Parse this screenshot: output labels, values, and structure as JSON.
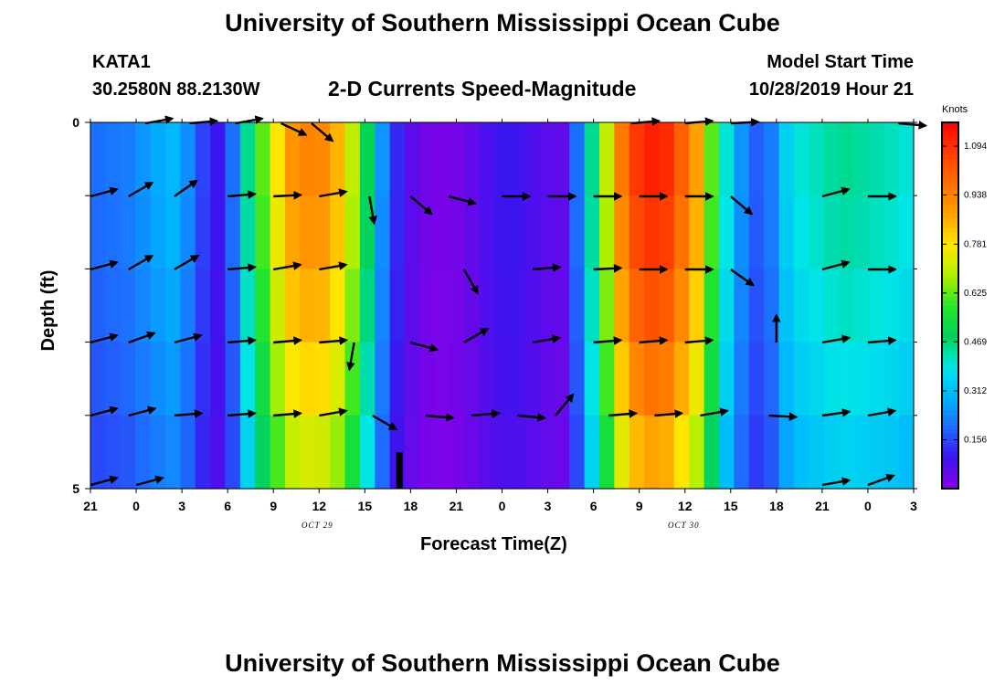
{
  "titles": {
    "top": "University of Southern Mississippi Ocean Cube",
    "bottom": "University of Southern Mississippi Ocean Cube"
  },
  "station": {
    "id": "KATA1",
    "coords": "30.2580N 88.2130W"
  },
  "model": {
    "label": "Model Start Time",
    "start": "10/28/2019 Hour 21"
  },
  "colorbar_unit": "Knots",
  "colors": {
    "ramp": [
      "#8a00e6",
      "#3c14f0",
      "#1e6cff",
      "#00b4ff",
      "#00e6e6",
      "#00d25a",
      "#28e628",
      "#b4f000",
      "#ffe600",
      "#ffa000",
      "#ff6e00",
      "#ff3c00",
      "#ff0000"
    ]
  },
  "chart_data": {
    "type": "heatmap",
    "title": "2-D Currents Speed-Magnitude",
    "xlabel": "Forecast Time(Z)",
    "ylabel": "Depth (ft)",
    "x_ticks": [
      "21",
      "0",
      "3",
      "6",
      "9",
      "12",
      "15",
      "18",
      "21",
      "0",
      "3",
      "6",
      "9",
      "12",
      "15",
      "18",
      "21",
      "0",
      "3"
    ],
    "x_date_labels": [
      {
        "tick_index": 5,
        "text": "OCT 29"
      },
      {
        "tick_index": 13,
        "text": "OCT 30"
      }
    ],
    "y_ticks": [
      "0",
      "",
      "",
      "",
      "",
      "5"
    ],
    "ylim": [
      0,
      5
    ],
    "x_hours": [
      0,
      1,
      2,
      3,
      4,
      5,
      6,
      7,
      8,
      9,
      10,
      11,
      12,
      13,
      14,
      15,
      16,
      17,
      18,
      19,
      20,
      21,
      22,
      23,
      24,
      25,
      26,
      27,
      28,
      29,
      30,
      31,
      32,
      33,
      34,
      35,
      36,
      37,
      38,
      39,
      40,
      41,
      42,
      43,
      44,
      45,
      46,
      47,
      48,
      49,
      50,
      51,
      52,
      53,
      54
    ],
    "depth_layers_ft": [
      0,
      1,
      2,
      3,
      4,
      5
    ],
    "colorbar": {
      "min": 0.0,
      "max": 1.17,
      "tick_labels": [
        "1.094",
        "0.938",
        "0.781",
        "0.625",
        "0.469",
        "0.312",
        "0.156"
      ],
      "tick_values": [
        1.094,
        0.938,
        0.781,
        0.625,
        0.469,
        0.312,
        0.156
      ]
    },
    "surface_speed_knots": [
      0.2,
      0.21,
      0.22,
      0.25,
      0.28,
      0.3,
      0.24,
      0.15,
      0.1,
      0.2,
      0.45,
      0.62,
      0.78,
      0.9,
      0.93,
      0.92,
      0.85,
      0.7,
      0.5,
      0.25,
      0.12,
      0.06,
      0.03,
      0.02,
      0.03,
      0.05,
      0.08,
      0.1,
      0.1,
      0.08,
      0.06,
      0.05,
      0.2,
      0.45,
      0.7,
      0.95,
      1.08,
      1.12,
      1.1,
      1.0,
      0.88,
      0.62,
      0.4,
      0.25,
      0.18,
      0.22,
      0.35,
      0.4,
      0.42,
      0.44,
      0.45,
      0.44,
      0.43,
      0.42,
      0.4
    ],
    "depth_factor": [
      1.0,
      0.97,
      0.92,
      0.86,
      0.78,
      0.68
    ],
    "vectors": [
      {
        "row": 0,
        "cols": [
          {
            "t": 3.6,
            "ang": 10
          },
          {
            "t": 6.5,
            "ang": 5
          },
          {
            "t": 9.5,
            "ang": 10
          },
          {
            "t": 12.5,
            "ang": -25
          },
          {
            "t": 14.5,
            "ang": -40
          },
          {
            "t": 35.5,
            "ang": 5
          },
          {
            "t": 39,
            "ang": 5
          },
          {
            "t": 42,
            "ang": 3
          },
          {
            "t": 53,
            "ang": -5
          }
        ]
      },
      {
        "row": 1,
        "cols": [
          {
            "t": 0,
            "ang": 15
          },
          {
            "t": 2.5,
            "ang": 30
          },
          {
            "t": 5.5,
            "ang": 35
          },
          {
            "t": 9,
            "ang": 5
          },
          {
            "t": 12,
            "ang": 3
          },
          {
            "t": 15,
            "ang": 10
          },
          {
            "t": 18.3,
            "ang": -80
          },
          {
            "t": 21,
            "ang": -40
          },
          {
            "t": 23.5,
            "ang": -15
          },
          {
            "t": 27,
            "ang": 0
          },
          {
            "t": 30,
            "ang": 0
          },
          {
            "t": 33,
            "ang": 0
          },
          {
            "t": 36,
            "ang": 0
          },
          {
            "t": 39,
            "ang": 0
          },
          {
            "t": 42,
            "ang": -40
          },
          {
            "t": 48,
            "ang": 15
          },
          {
            "t": 51,
            "ang": 0
          }
        ]
      },
      {
        "row": 2,
        "cols": [
          {
            "t": 0,
            "ang": 15
          },
          {
            "t": 2.5,
            "ang": 30
          },
          {
            "t": 5.5,
            "ang": 30
          },
          {
            "t": 9,
            "ang": 5
          },
          {
            "t": 12,
            "ang": 10
          },
          {
            "t": 15,
            "ang": 10
          },
          {
            "t": 24.5,
            "ang": -60
          },
          {
            "t": 29,
            "ang": 5
          },
          {
            "t": 33,
            "ang": 3
          },
          {
            "t": 36,
            "ang": 0
          },
          {
            "t": 39,
            "ang": 0
          },
          {
            "t": 42,
            "ang": -35
          },
          {
            "t": 48,
            "ang": 15
          },
          {
            "t": 51,
            "ang": 0
          }
        ]
      },
      {
        "row": 3,
        "cols": [
          {
            "t": 0,
            "ang": 15
          },
          {
            "t": 2.5,
            "ang": 20
          },
          {
            "t": 5.5,
            "ang": 15
          },
          {
            "t": 9,
            "ang": 5
          },
          {
            "t": 12,
            "ang": 5
          },
          {
            "t": 15,
            "ang": 5
          },
          {
            "t": 17.3,
            "ang": -100
          },
          {
            "t": 21,
            "ang": -15
          },
          {
            "t": 24.5,
            "ang": 30
          },
          {
            "t": 29,
            "ang": 10
          },
          {
            "t": 33,
            "ang": 5
          },
          {
            "t": 36,
            "ang": 5
          },
          {
            "t": 39,
            "ang": 5
          },
          {
            "t": 45,
            "ang": 90
          },
          {
            "t": 48,
            "ang": 10
          },
          {
            "t": 51,
            "ang": 5
          }
        ]
      },
      {
        "row": 4,
        "cols": [
          {
            "t": 0,
            "ang": 15
          },
          {
            "t": 2.5,
            "ang": 15
          },
          {
            "t": 5.5,
            "ang": 5
          },
          {
            "t": 9,
            "ang": 5
          },
          {
            "t": 12,
            "ang": 5
          },
          {
            "t": 15,
            "ang": 10
          },
          {
            "t": 18.5,
            "ang": -30
          },
          {
            "t": 22,
            "ang": -5
          },
          {
            "t": 25,
            "ang": 5
          },
          {
            "t": 28,
            "ang": -5
          },
          {
            "t": 30.5,
            "ang": 50
          },
          {
            "t": 34,
            "ang": 5
          },
          {
            "t": 37,
            "ang": 5
          },
          {
            "t": 40,
            "ang": 10
          },
          {
            "t": 44.5,
            "ang": -3
          },
          {
            "t": 48,
            "ang": 8
          },
          {
            "t": 51,
            "ang": 10
          }
        ]
      },
      {
        "row": 5,
        "cols": [
          {
            "t": 0,
            "ang": 15
          },
          {
            "t": 3,
            "ang": 15
          },
          {
            "t": 48,
            "ang": 10
          },
          {
            "t": 51,
            "ang": 20
          }
        ]
      }
    ]
  }
}
